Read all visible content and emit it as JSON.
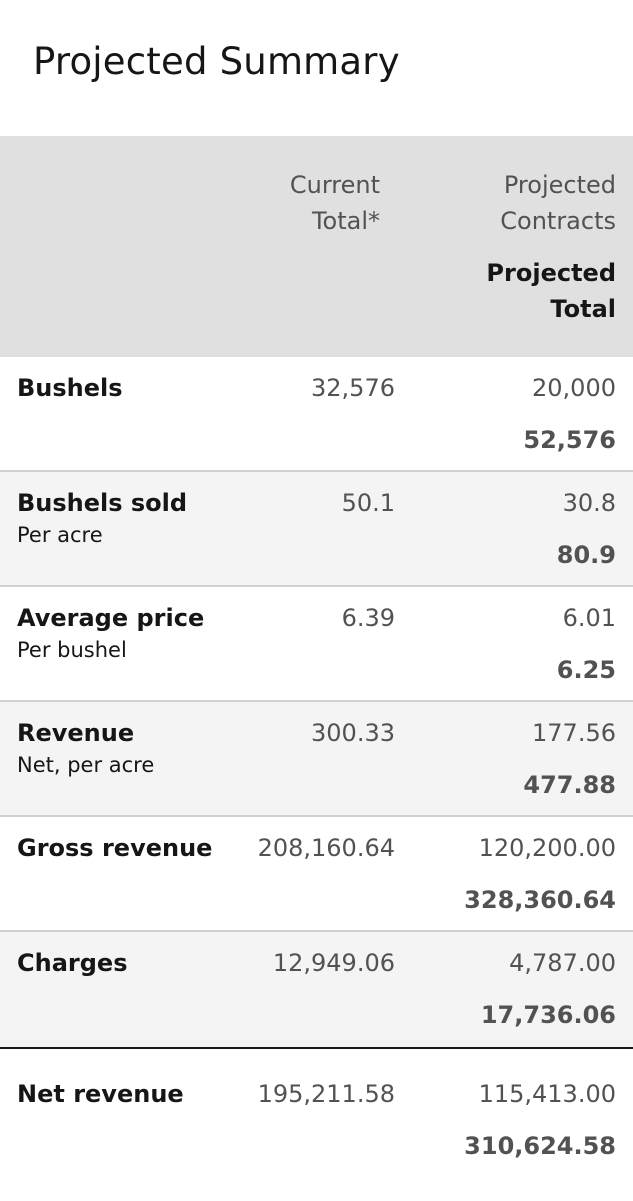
{
  "title": "Projected Summary",
  "header": {
    "current_line1": "Current",
    "current_line2": "Total*",
    "contracts_line1": "Projected",
    "contracts_line2": "Contracts",
    "total_line1": "Projected",
    "total_line2": "Total"
  },
  "rows": [
    {
      "label": "Bushels",
      "sublabel": "",
      "current": "32,576",
      "contracts": "20,000",
      "total": "52,576"
    },
    {
      "label": "Bushels sold",
      "sublabel": "Per acre",
      "current": "50.1",
      "contracts": "30.8",
      "total": "80.9"
    },
    {
      "label": "Average price",
      "sublabel": "Per bushel",
      "current": "6.39",
      "contracts": "6.01",
      "total": "6.25"
    },
    {
      "label": "Revenue",
      "sublabel": "Net, per acre",
      "current": "300.33",
      "contracts": "177.56",
      "total": "477.88"
    },
    {
      "label": "Gross revenue",
      "sublabel": "",
      "current": "208,160.64",
      "contracts": "120,200.00",
      "total": "328,360.64"
    },
    {
      "label": "Charges",
      "sublabel": "",
      "current": "12,949.06",
      "contracts": "4,787.00",
      "total": "17,736.06"
    },
    {
      "label": "Net revenue",
      "sublabel": "",
      "current": "195,211.58",
      "contracts": "115,413.00",
      "total": "310,624.58"
    }
  ]
}
